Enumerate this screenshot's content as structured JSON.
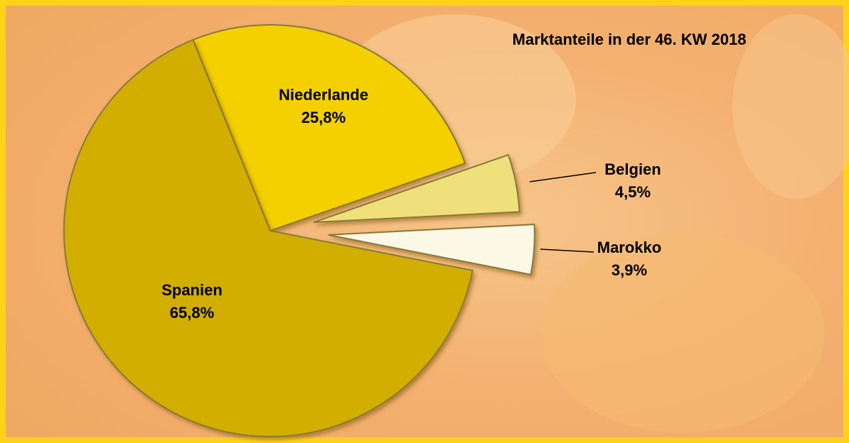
{
  "chart_data": {
    "type": "pie",
    "title": "Marktanteile in der 46. KW 2018",
    "categories": [
      "Niederlande",
      "Belgien",
      "Marokko",
      "Spanien"
    ],
    "values": [
      25.8,
      4.5,
      3.9,
      65.8
    ],
    "value_labels": [
      "25,8%",
      "4,5%",
      "3,9%",
      "65,8%"
    ],
    "colors": [
      "#f5d000",
      "#efe07c",
      "#fbf8e6",
      "#d2ae00"
    ]
  }
}
